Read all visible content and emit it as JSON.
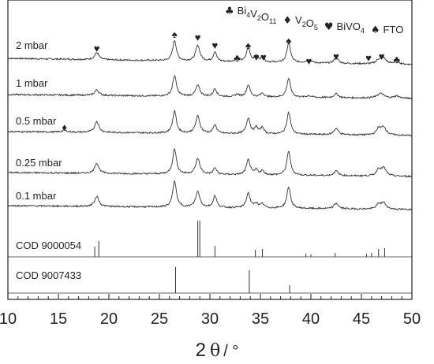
{
  "chart_data": {
    "type": "line",
    "xlabel_main": "2",
    "xlabel_theta": "θ",
    "xlabel_unit": "/ °",
    "xlim": [
      10,
      50
    ],
    "xticks": [
      10,
      15,
      20,
      25,
      30,
      35,
      40,
      45,
      50
    ],
    "legend": [
      {
        "symbol": "♣",
        "label": "Bi",
        "sub": "4",
        "label2": "V",
        "sub2": "2",
        "label3": "O",
        "sub3": "11"
      },
      {
        "symbol": "♦",
        "label": "V",
        "sub": "2",
        "label2": "O",
        "sub2": "5",
        "label3": "",
        "sub3": ""
      },
      {
        "symbol": "♥",
        "label": "BiVO",
        "sub": "4",
        "label2": "",
        "sub2": "",
        "label3": "",
        "sub3": ""
      },
      {
        "symbol": "♠",
        "label": "FTO",
        "sub": "",
        "label2": "",
        "sub2": "",
        "label3": "",
        "sub3": ""
      }
    ],
    "series": [
      {
        "name": "2 mbar",
        "kind": "measured",
        "peaks": [
          [
            18.8,
            9,
            0.25
          ],
          [
            26.5,
            26,
            0.22
          ],
          [
            28.8,
            20,
            0.25
          ],
          [
            30.5,
            12,
            0.2
          ],
          [
            32.7,
            5,
            0.2
          ],
          [
            33.8,
            18,
            0.22
          ],
          [
            34.6,
            7,
            0.2
          ],
          [
            35.2,
            6,
            0.2
          ],
          [
            37.8,
            25,
            0.22
          ],
          [
            39.8,
            4,
            0.3
          ],
          [
            42.5,
            7,
            0.25
          ],
          [
            46.7,
            5,
            0.3
          ],
          [
            47.2,
            7,
            0.3
          ],
          [
            48.5,
            4,
            0.3
          ]
        ]
      },
      {
        "name": "1 mbar",
        "kind": "measured",
        "peaks": [
          [
            18.8,
            7,
            0.25
          ],
          [
            26.5,
            26,
            0.22
          ],
          [
            28.8,
            14,
            0.25
          ],
          [
            30.5,
            10,
            0.2
          ],
          [
            32.7,
            3,
            0.2
          ],
          [
            33.8,
            15,
            0.22
          ],
          [
            35.2,
            5,
            0.2
          ],
          [
            37.8,
            24,
            0.22
          ],
          [
            39.8,
            2,
            0.3
          ],
          [
            42.5,
            5,
            0.25
          ],
          [
            46.9,
            6,
            0.4
          ],
          [
            48.5,
            3,
            0.3
          ]
        ]
      },
      {
        "name": "0.5 mbar",
        "kind": "measured",
        "peaks": [
          [
            15.6,
            2,
            0.3
          ],
          [
            18.8,
            14,
            0.25
          ],
          [
            26.5,
            28,
            0.22
          ],
          [
            28.8,
            22,
            0.25
          ],
          [
            30.5,
            11,
            0.2
          ],
          [
            33.8,
            20,
            0.22
          ],
          [
            34.6,
            8,
            0.2
          ],
          [
            35.2,
            8,
            0.2
          ],
          [
            37.8,
            28,
            0.22
          ],
          [
            42.5,
            8,
            0.25
          ],
          [
            46.7,
            8,
            0.25
          ],
          [
            47.2,
            10,
            0.3
          ]
        ]
      },
      {
        "name": "0.25 mbar",
        "kind": "measured",
        "peaks": [
          [
            18.8,
            13,
            0.25
          ],
          [
            26.5,
            32,
            0.22
          ],
          [
            28.8,
            20,
            0.25
          ],
          [
            30.5,
            8,
            0.2
          ],
          [
            33.8,
            19,
            0.22
          ],
          [
            34.6,
            6,
            0.2
          ],
          [
            35.2,
            5,
            0.2
          ],
          [
            37.8,
            30,
            0.22
          ],
          [
            42.5,
            6,
            0.25
          ],
          [
            46.7,
            8,
            0.25
          ],
          [
            47.2,
            10,
            0.3
          ]
        ]
      },
      {
        "name": "0.1 mbar",
        "kind": "measured",
        "peaks": [
          [
            18.8,
            13,
            0.25
          ],
          [
            26.5,
            33,
            0.22
          ],
          [
            28.8,
            20,
            0.25
          ],
          [
            30.5,
            15,
            0.2
          ],
          [
            33.8,
            19,
            0.22
          ],
          [
            34.6,
            6,
            0.2
          ],
          [
            35.2,
            5,
            0.2
          ],
          [
            37.8,
            27,
            0.22
          ],
          [
            42.5,
            7,
            0.25
          ],
          [
            46.7,
            6,
            0.25
          ],
          [
            47.2,
            8,
            0.3
          ]
        ]
      },
      {
        "name": "COD 9000054",
        "kind": "reference",
        "sticks": [
          [
            18.6,
            13
          ],
          [
            19.0,
            20
          ],
          [
            28.8,
            46
          ],
          [
            29.0,
            46
          ],
          [
            30.5,
            14
          ],
          [
            34.5,
            9
          ],
          [
            35.2,
            10
          ],
          [
            39.5,
            4
          ],
          [
            40.0,
            3
          ],
          [
            42.4,
            5
          ],
          [
            45.5,
            4
          ],
          [
            46.0,
            5
          ],
          [
            46.7,
            10
          ],
          [
            47.3,
            11
          ],
          [
            50.0,
            3
          ]
        ]
      },
      {
        "name": "COD 9007433",
        "kind": "reference",
        "sticks": [
          [
            26.6,
            33
          ],
          [
            33.9,
            29
          ],
          [
            37.9,
            10
          ],
          [
            51.7,
            3
          ]
        ]
      }
    ],
    "markers": [
      {
        "symbol": "♥",
        "x": 18.8
      },
      {
        "symbol": "♠",
        "x": 26.5
      },
      {
        "symbol": "♥",
        "x": 28.8
      },
      {
        "symbol": "♥",
        "x": 30.5
      },
      {
        "symbol": "♣",
        "x": 32.7
      },
      {
        "symbol": "♠",
        "x": 33.8
      },
      {
        "symbol": "♥",
        "x": 34.6
      },
      {
        "symbol": "♥",
        "x": 35.3
      },
      {
        "symbol": "♠",
        "x": 37.8
      },
      {
        "symbol": "♥",
        "x": 39.8
      },
      {
        "symbol": "♥",
        "x": 42.5
      },
      {
        "symbol": "♥",
        "x": 45.7
      },
      {
        "symbol": "♥",
        "x": 47.0
      },
      {
        "symbol": "♣",
        "x": 48.5
      }
    ],
    "v2o5_marker": {
      "symbol": "♦",
      "x": 15.6
    }
  }
}
